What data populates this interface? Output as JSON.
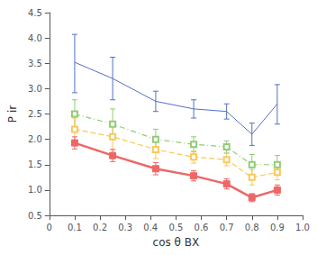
{
  "chart_data": {
    "type": "line",
    "xlabel": "cos θ BX",
    "ylabel": "P ir",
    "x": [
      0.1,
      0.25,
      0.42,
      0.57,
      0.7,
      0.8,
      0.9
    ],
    "series": [
      {
        "color": "#5470c6",
        "line_style": "solid",
        "marker": "none",
        "values": [
          3.52,
          3.2,
          2.75,
          2.6,
          2.55,
          2.1,
          2.7
        ],
        "yerr_lo": [
          0.6,
          0.42,
          0.2,
          0.18,
          0.15,
          0.22,
          0.4
        ],
        "yerr_hi": [
          0.55,
          0.42,
          0.2,
          0.18,
          0.15,
          0.22,
          0.38
        ]
      },
      {
        "color": "#91cc75",
        "line_style": "dashdot",
        "marker": "open_square",
        "values": [
          2.5,
          2.3,
          2.0,
          1.9,
          1.85,
          1.5,
          1.5
        ],
        "yerr_lo": [
          0.3,
          0.3,
          0.2,
          0.15,
          0.12,
          0.2,
          0.18
        ],
        "yerr_hi": [
          0.28,
          0.3,
          0.2,
          0.15,
          0.12,
          0.2,
          0.18
        ]
      },
      {
        "color": "#fac858",
        "line_style": "dashed",
        "marker": "open_square",
        "values": [
          2.2,
          2.05,
          1.8,
          1.65,
          1.6,
          1.25,
          1.35
        ],
        "yerr_lo": [
          0.25,
          0.25,
          0.18,
          0.12,
          0.12,
          0.15,
          0.15
        ],
        "yerr_hi": [
          0.22,
          0.25,
          0.18,
          0.12,
          0.12,
          0.15,
          0.15
        ]
      },
      {
        "color": "#ee6666",
        "line_style": "solid",
        "marker": "square",
        "values": [
          1.93,
          1.68,
          1.42,
          1.28,
          1.12,
          0.85,
          1.0
        ],
        "yerr_lo": [
          0.12,
          0.12,
          0.12,
          0.1,
          0.1,
          0.08,
          0.1
        ],
        "yerr_hi": [
          0.12,
          0.12,
          0.12,
          0.1,
          0.1,
          0.08,
          0.1
        ]
      }
    ],
    "xlim": [
      0,
      1.0
    ],
    "ylim": [
      0.5,
      4.5
    ],
    "xticks": [
      0,
      0.1,
      0.2,
      0.3,
      0.4,
      0.5,
      0.6,
      0.7,
      0.8,
      0.9,
      {
        "value": 1.0,
        "label": "1.0"
      }
    ],
    "yticks": [
      0.5,
      {
        "value": 1.0,
        "label": "1.0"
      },
      1.5,
      {
        "value": 2.0,
        "label": "2.0"
      },
      2.5,
      {
        "value": 3.0,
        "label": "3.0"
      },
      3.5,
      {
        "value": 4.0,
        "label": "4.0"
      },
      4.5
    ],
    "grid": false,
    "legend": false
  }
}
